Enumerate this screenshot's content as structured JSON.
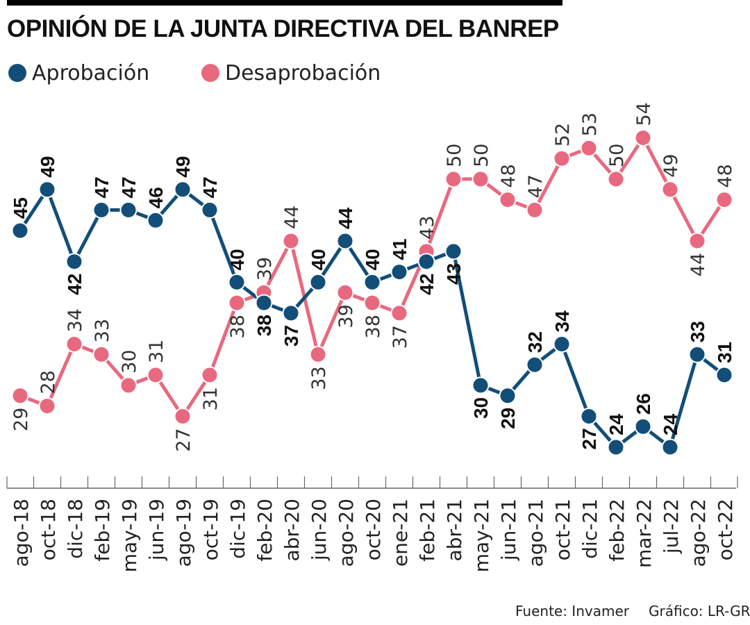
{
  "title": "OPINIÓN DE LA JUNTA DIRECTIVA DEL BANREP",
  "legend": {
    "approval": "Aprobación",
    "disapproval": "Desaprobación"
  },
  "colors": {
    "approval": "#124e78",
    "disapproval": "#e8697f",
    "axis": "#666666",
    "text": "#111111"
  },
  "footer": {
    "source": "Fuente: Invamer",
    "credit": "Gráfico: LR-GR"
  },
  "chart_data": {
    "type": "line",
    "title": "OPINIÓN DE LA JUNTA DIRECTIVA DEL BANREP",
    "xlabel": "",
    "ylabel": "",
    "ylim": [
      20,
      56
    ],
    "grid": false,
    "legend_position": "top-left",
    "categories": [
      "ago-18",
      "oct-18",
      "dic-18",
      "feb-19",
      "may-19",
      "jun-19",
      "ago-19",
      "oct-19",
      "dic-19",
      "feb-20",
      "abr-20",
      "jun-20",
      "ago-20",
      "oct-20",
      "ene-21",
      "feb-21",
      "abr-21",
      "may-21",
      "jun-21",
      "ago-21",
      "oct-21",
      "dic-21",
      "feb-22",
      "mar-22",
      "jul-22",
      "ago-22",
      "oct-22"
    ],
    "series": [
      {
        "name": "Aprobación",
        "values": [
          45,
          49,
          42,
          47,
          47,
          46,
          49,
          47,
          40,
          38,
          37,
          40,
          44,
          40,
          41,
          42,
          43,
          30,
          29,
          32,
          34,
          27,
          24,
          26,
          24,
          33,
          31
        ]
      },
      {
        "name": "Desaprobación",
        "values": [
          29,
          28,
          34,
          33,
          30,
          31,
          27,
          31,
          38,
          39,
          44,
          33,
          39,
          38,
          37,
          43,
          50,
          50,
          48,
          47,
          52,
          53,
          50,
          54,
          49,
          44,
          48
        ]
      }
    ]
  }
}
